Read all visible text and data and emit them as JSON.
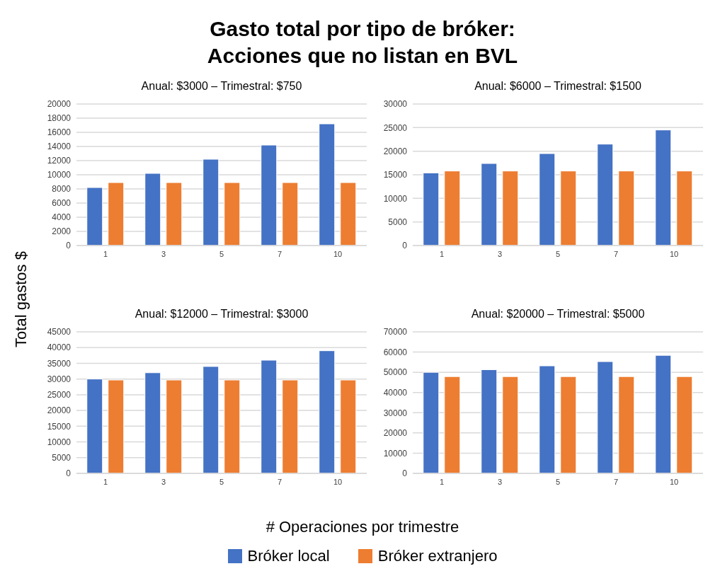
{
  "chart_data": [
    {
      "type": "other",
      "title": "Gasto total por tipo de bróker:\nAcciones que no listan en BVL",
      "xlabel": "# Operaciones por trimestre",
      "ylabel": "Total gastos $",
      "legend": "bottom",
      "series": [
        {
          "name": "Bróker local",
          "color": "#4472c4"
        },
        {
          "name": "Bróker extranjero",
          "color": "#ed7d31"
        }
      ]
    },
    {
      "type": "bar",
      "title": "Anual: $3000 – Trimestral: $750",
      "categories": [
        "1",
        "3",
        "5",
        "7",
        "10"
      ],
      "ylim": [
        0,
        20000
      ],
      "yticks": [
        0,
        2000,
        4000,
        6000,
        8000,
        10000,
        12000,
        14000,
        16000,
        18000,
        20000
      ],
      "grid": "y",
      "series": [
        {
          "color": "#4472c4",
          "values": [
            8200,
            10200,
            12200,
            14200,
            17200
          ]
        },
        {
          "color": "#ed7d31",
          "values": [
            8900,
            8900,
            8900,
            8900,
            8900
          ]
        }
      ]
    },
    {
      "type": "bar",
      "title": "Anual: $6000 – Trimestral: $1500",
      "categories": [
        "1",
        "3",
        "5",
        "7",
        "10"
      ],
      "ylim": [
        0,
        30000
      ],
      "yticks": [
        0,
        5000,
        10000,
        15000,
        20000,
        25000,
        30000
      ],
      "grid": "y",
      "series": [
        {
          "color": "#4472c4",
          "values": [
            15400,
            17400,
            19500,
            21500,
            24500
          ]
        },
        {
          "color": "#ed7d31",
          "values": [
            15800,
            15800,
            15800,
            15800,
            15800
          ]
        }
      ]
    },
    {
      "type": "bar",
      "title": "Anual: $12000 – Trimestral: $3000",
      "categories": [
        "1",
        "3",
        "5",
        "7",
        "10"
      ],
      "ylim": [
        0,
        45000
      ],
      "yticks": [
        0,
        5000,
        10000,
        15000,
        20000,
        25000,
        30000,
        35000,
        40000,
        45000
      ],
      "grid": "y",
      "series": [
        {
          "color": "#4472c4",
          "values": [
            30000,
            32000,
            34000,
            36000,
            39000
          ]
        },
        {
          "color": "#ed7d31",
          "values": [
            29700,
            29700,
            29700,
            29700,
            29700
          ]
        }
      ]
    },
    {
      "type": "bar",
      "title": "Anual: $20000 – Trimestral: $5000",
      "categories": [
        "1",
        "3",
        "5",
        "7",
        "10"
      ],
      "ylim": [
        0,
        70000
      ],
      "yticks": [
        0,
        10000,
        20000,
        30000,
        40000,
        50000,
        60000,
        70000
      ],
      "grid": "y",
      "series": [
        {
          "color": "#4472c4",
          "values": [
            50000,
            51300,
            53200,
            55300,
            58400
          ]
        },
        {
          "color": "#ed7d31",
          "values": [
            47900,
            47900,
            47900,
            47900,
            47900
          ]
        }
      ]
    }
  ]
}
